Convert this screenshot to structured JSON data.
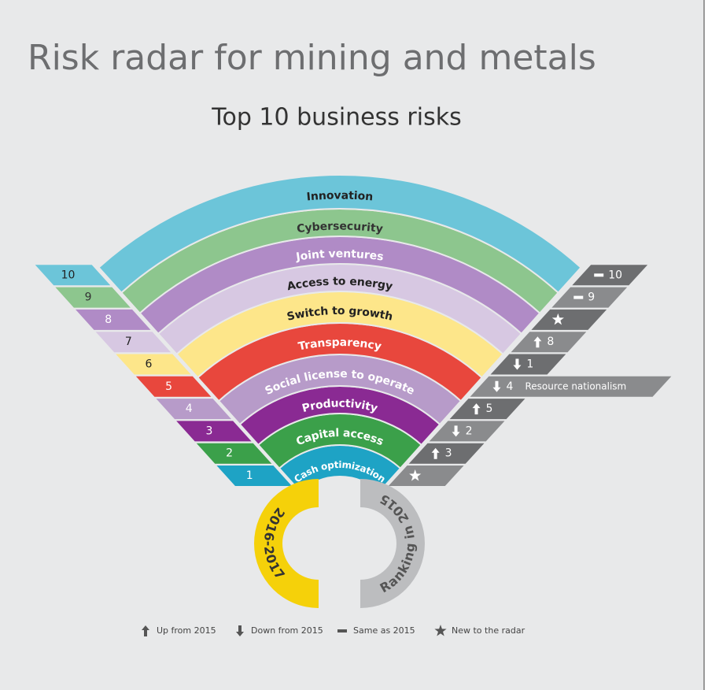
{
  "header": {
    "title": "Risk radar for mining and metals",
    "subtitle": "Top 10 business risks"
  },
  "risks": [
    {
      "rank": 1,
      "name": "Cash optimization",
      "color": "#1ea3c5",
      "text_color": "#ffffff",
      "change": "new"
    },
    {
      "rank": 2,
      "name": "Capital access",
      "color": "#3ba04a",
      "text_color": "#ffffff",
      "change": "up",
      "previous": 3
    },
    {
      "rank": 3,
      "name": "Productivity",
      "color": "#8a2a93",
      "text_color": "#ffffff",
      "change": "down",
      "previous": 2
    },
    {
      "rank": 4,
      "name": "Social license to operate",
      "color": "#b79bc9",
      "text_color": "#ffffff",
      "change": "up",
      "previous": 5
    },
    {
      "rank": 5,
      "name": "Transparency",
      "color": "#e8473d",
      "text_color": "#ffffff",
      "change": "down",
      "previous": 4,
      "note": "Resource nationalism"
    },
    {
      "rank": 6,
      "name": "Switch to growth",
      "color": "#fde68a",
      "text_color": "#222222",
      "change": "down",
      "previous": 1
    },
    {
      "rank": 7,
      "name": "Access to energy",
      "color": "#d7c8e2",
      "text_color": "#222222",
      "change": "up",
      "previous": 8
    },
    {
      "rank": 8,
      "name": "Joint ventures",
      "color": "#b08bc6",
      "text_color": "#ffffff",
      "change": "new"
    },
    {
      "rank": 9,
      "name": "Cybersecurity",
      "color": "#8dc68e",
      "text_color": "#333333",
      "change": "same",
      "previous": 9
    },
    {
      "rank": 10,
      "name": "Innovation",
      "color": "#6cc5d9",
      "text_color": "#222222",
      "change": "same",
      "previous": 10
    }
  ],
  "ring_labels": {
    "current": "2016-2017",
    "previous": "Ranking in 2015"
  },
  "legend": [
    {
      "symbol": "up",
      "label": "Up from 2015"
    },
    {
      "symbol": "down",
      "label": "Down from 2015"
    },
    {
      "symbol": "same",
      "label": "Same as 2015"
    },
    {
      "symbol": "new",
      "label": "New to the radar"
    }
  ]
}
